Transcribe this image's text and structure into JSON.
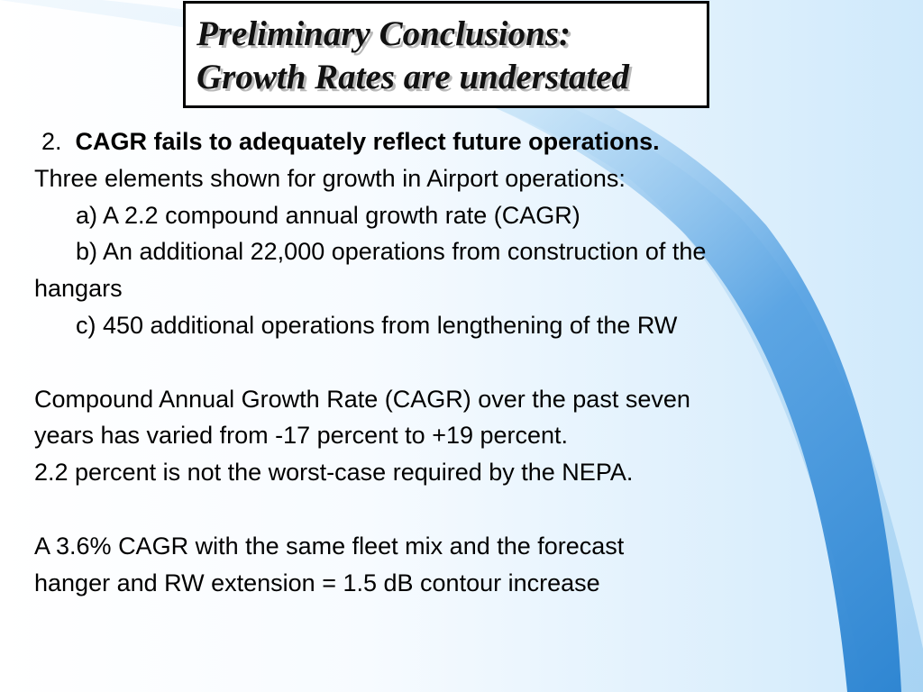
{
  "slide": {
    "title_line_1": "Preliminary Conclusions:",
    "title_line_2": "Growth Rates are understated",
    "point_number": "2.",
    "point_heading": "CAGR fails to adequately reflect future operations.",
    "intro": "Three elements shown for growth in Airport operations:",
    "item_a": "a) A 2.2 compound annual growth rate (CAGR)",
    "item_b_line1": "b) An additional 22,000 operations from construction of the",
    "item_b_line2": "hangars",
    "item_c": "c) 450 additional operations from lengthening of the RW",
    "para2_line1": "Compound Annual Growth Rate (CAGR) over the past seven",
    "para2_line2": "years has varied from -17 percent to +19 percent.",
    "para2_line3": "2.2 percent is not the worst-case required by the NEPA.",
    "para3_line1": "A 3.6% CAGR with the same fleet mix and the forecast",
    "para3_line2": "hanger and RW extension = 1.5 dB contour increase"
  },
  "theme": {
    "swoosh_color": "#3a8fd8",
    "background_accent": "#cfe9fb",
    "title_border": "#000000"
  }
}
